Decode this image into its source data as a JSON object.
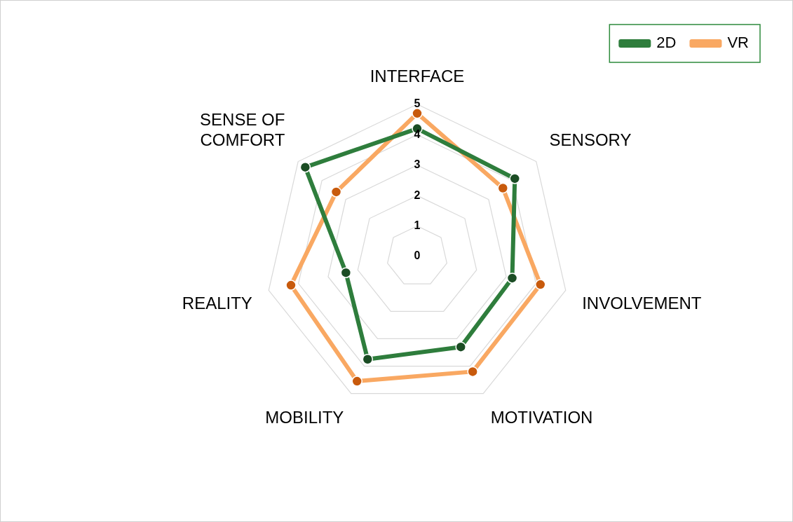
{
  "chart_data": {
    "type": "radar",
    "categories": [
      "INTERFACE",
      "SENSORY",
      "INVOLVEMENT",
      "MOTIVATION",
      "MOBILITY",
      "REALITY",
      "SENSE OF COMFORT"
    ],
    "series": [
      {
        "name": "2D",
        "color": "#2e7d3c",
        "values": [
          4.2,
          4.1,
          3.2,
          3.3,
          3.75,
          2.4,
          4.7
        ]
      },
      {
        "name": "VR",
        "color": "#f9a862",
        "values": [
          4.7,
          3.6,
          4.15,
          4.2,
          4.55,
          4.25,
          3.4
        ]
      }
    ],
    "ylim": [
      0,
      5
    ],
    "yticks": [
      0,
      1,
      2,
      3,
      4,
      5
    ],
    "grid": true,
    "legend": "top right",
    "marker": "circle"
  }
}
